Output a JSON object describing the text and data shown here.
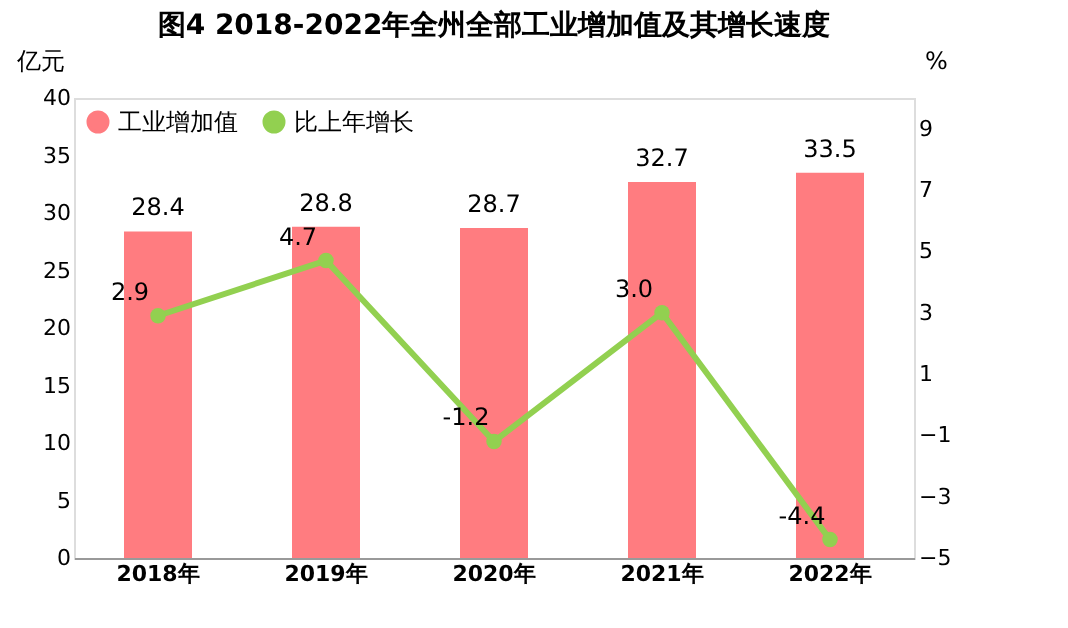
{
  "chart_data": {
    "type": "bar",
    "title": "图4  2018-2022年全州全部工业增加值及其增长速度",
    "categories": [
      "2018年",
      "2019年",
      "2020年",
      "2021年",
      "2022年"
    ],
    "series": [
      {
        "name": "工业增加值",
        "color": "#ff7c80",
        "values": [
          28.4,
          28.8,
          28.7,
          32.7,
          33.5
        ]
      },
      {
        "name": "比上年增长",
        "color": "#92d050",
        "type": "line",
        "axis": "y2",
        "marker": "circle",
        "values": [
          2.9,
          4.7,
          -1.2,
          3.0,
          -4.4
        ],
        "value_labels": [
          "2.9",
          "4.7",
          "-1.2",
          "3.0",
          "-4.4"
        ]
      }
    ],
    "ylabel": "亿元",
    "y2label": "%",
    "ylim": [
      0,
      40
    ],
    "yticks": [
      0,
      5,
      10,
      15,
      20,
      25,
      30,
      35,
      40
    ],
    "y2lim": [
      -5,
      10
    ],
    "y2ticks": [
      -5,
      -3,
      -1,
      1,
      3,
      5,
      7,
      9
    ],
    "data_labels": true,
    "legend": "top left",
    "grid": false
  }
}
